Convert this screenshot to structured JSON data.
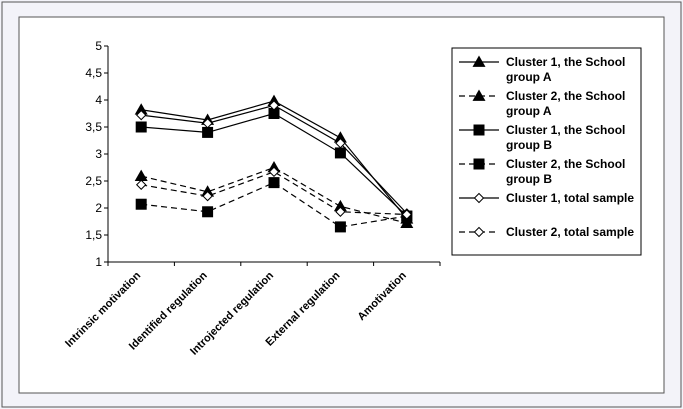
{
  "chart_data": {
    "type": "line",
    "categories": [
      "Intrinsic motivation",
      "Identified regulation",
      "Introjected regulation",
      "External regulation",
      "Amotivation"
    ],
    "ylim": [
      1,
      5
    ],
    "yticks": [
      1,
      1.5,
      2,
      2.5,
      3,
      3.5,
      4,
      4.5,
      5
    ],
    "ytick_labels": [
      "1",
      "1,5",
      "2",
      "2,5",
      "3",
      "3,5",
      "4",
      "4,5",
      "5"
    ],
    "grid": false,
    "legend_position": "right",
    "series": [
      {
        "name": "Cluster 1, the School group A",
        "values": [
          3.82,
          3.63,
          3.98,
          3.3,
          1.8
        ],
        "marker": "triangle",
        "dash": "solid"
      },
      {
        "name": "Cluster 2, the School group A",
        "values": [
          2.59,
          2.3,
          2.75,
          2.03,
          1.72
        ],
        "marker": "triangle",
        "dash": "dashed"
      },
      {
        "name": "Cluster 1, the School group B",
        "values": [
          3.5,
          3.4,
          3.75,
          3.02,
          1.85
        ],
        "marker": "square",
        "dash": "solid"
      },
      {
        "name": "Cluster 2, the School group B",
        "values": [
          2.07,
          1.93,
          2.47,
          1.65,
          1.85
        ],
        "marker": "square",
        "dash": "dashed"
      },
      {
        "name": "Cluster 1, total sample",
        "values": [
          3.72,
          3.57,
          3.9,
          3.2,
          1.9
        ],
        "marker": "diamond",
        "dash": "solid"
      },
      {
        "name": "Cluster 2, total sample",
        "values": [
          2.43,
          2.22,
          2.67,
          1.93,
          1.88
        ],
        "marker": "diamond",
        "dash": "dashed"
      }
    ],
    "colors": {
      "background": "#f3f3f9",
      "frame": "#555555",
      "line": "#000000"
    }
  }
}
